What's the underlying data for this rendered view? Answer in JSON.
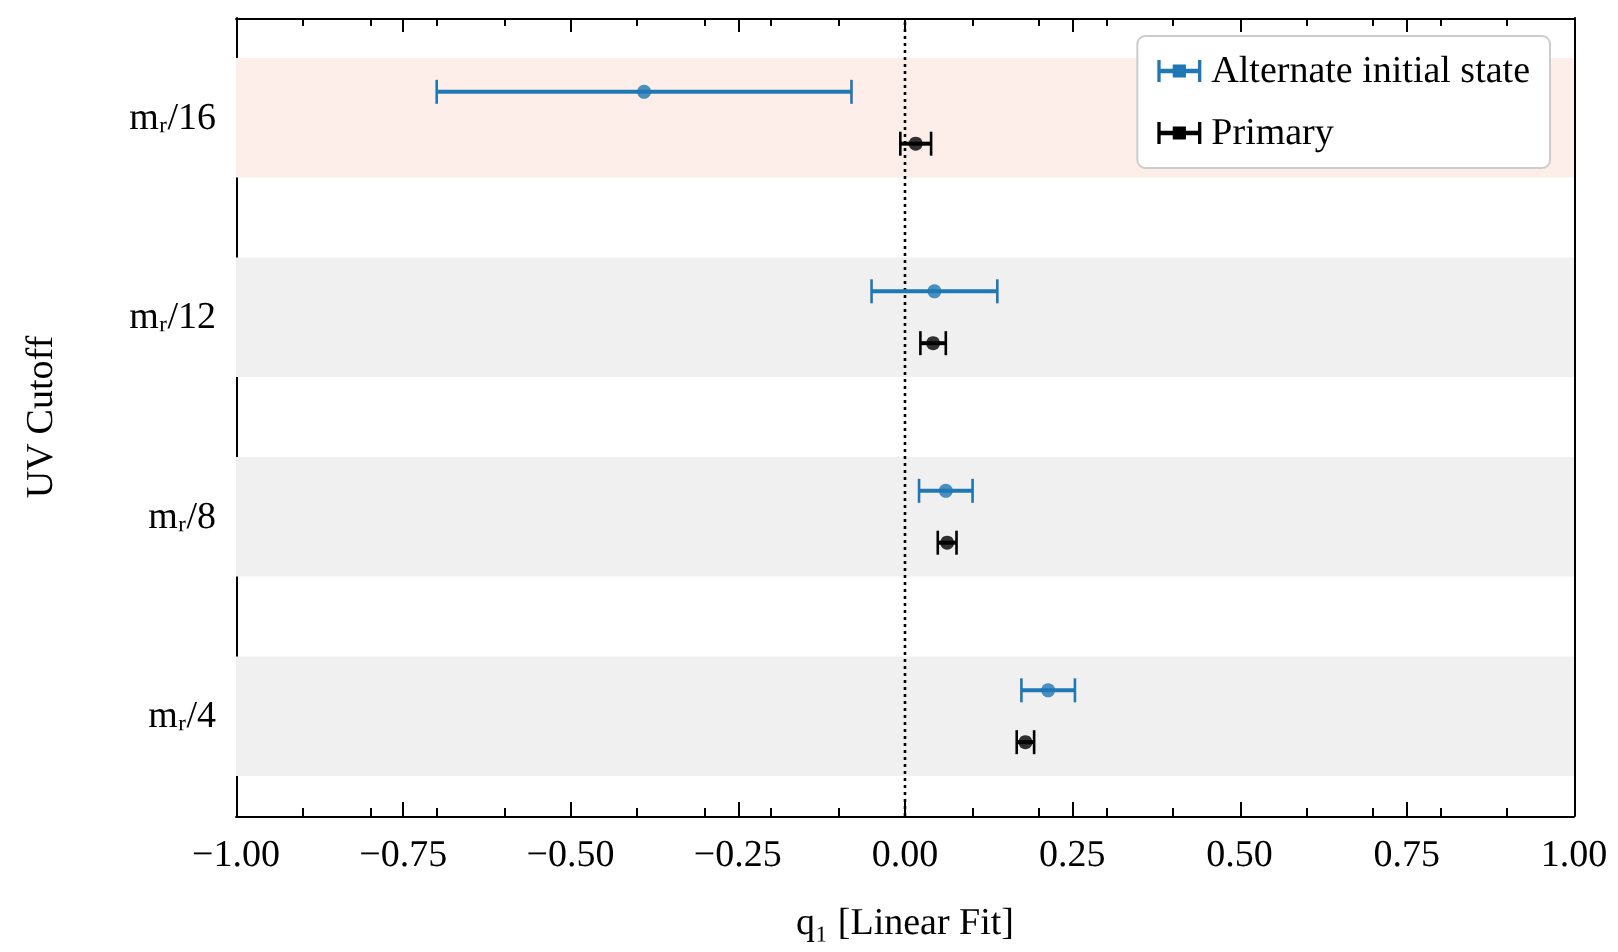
{
  "chart_data": {
    "type": "scatter",
    "orientation": "horizontal",
    "xlabel": "q₁ [Linear Fit]",
    "ylabel": "UV Cutoff",
    "categories": [
      "mᵣ/16",
      "mᵣ/12",
      "mᵣ/8",
      "mᵣ/4"
    ],
    "xlim": [
      -1,
      1
    ],
    "xticks": [
      {
        "value": -1,
        "label": "−1.00"
      },
      {
        "value": -0.75,
        "label": "−0.75"
      },
      {
        "value": -0.5,
        "label": "−0.50"
      },
      {
        "value": -0.25,
        "label": "−0.25"
      },
      {
        "value": 0,
        "label": "0.00"
      },
      {
        "value": 0.25,
        "label": "0.25"
      },
      {
        "value": 0.5,
        "label": "0.50"
      },
      {
        "value": 0.75,
        "label": "0.75"
      },
      {
        "value": 1,
        "label": "1.00"
      }
    ],
    "series": [
      {
        "name": "Alternate initial state",
        "color": "#1f77b4",
        "values": [
          -0.39,
          0.044,
          0.061,
          0.214
        ],
        "errors": [
          0.31,
          0.094,
          0.04,
          0.04
        ]
      },
      {
        "name": "Primary",
        "color": "#000000",
        "values": [
          0.016,
          0.042,
          0.063,
          0.18
        ],
        "errors": [
          0.023,
          0.019,
          0.014,
          0.013
        ]
      }
    ],
    "bands": [
      {
        "axis": "y",
        "from": "mᵣ/16",
        "to": "mᵣ/16",
        "color": "#fdeeea"
      },
      {
        "axis": "y",
        "from": "mᵣ/12",
        "to": "mᵣ/12",
        "color": "#f0f0f0"
      },
      {
        "axis": "y",
        "from": "mᵣ/8",
        "to": "mᵣ/8",
        "color": "#f0f0f0"
      },
      {
        "axis": "y",
        "from": "mᵣ/4",
        "to": "mᵣ/4",
        "color": "#f0f0f0"
      }
    ],
    "ref_lines": [
      {
        "axis": "x",
        "value": 0,
        "line_style": "dotted",
        "color": "#000000"
      }
    ],
    "legend": "top right",
    "grid": false,
    "marker": "circle"
  }
}
